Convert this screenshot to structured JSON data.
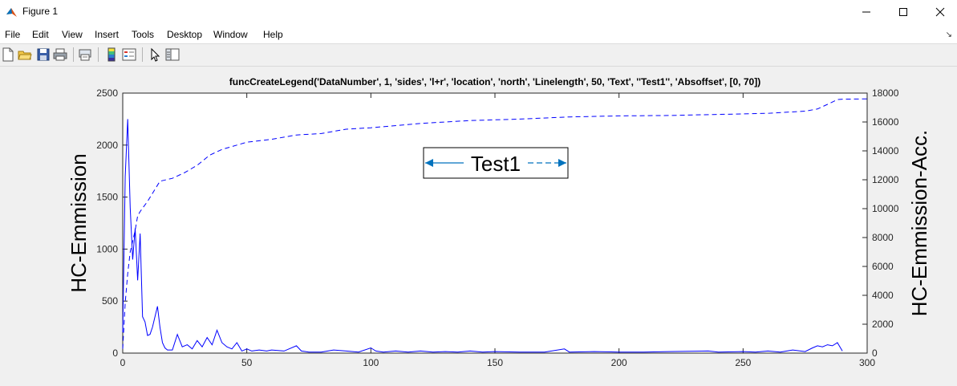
{
  "window": {
    "title": "Figure 1"
  },
  "menu": [
    "File",
    "Edit",
    "View",
    "Insert",
    "Tools",
    "Desktop",
    "Window",
    "Help"
  ],
  "toolbar": [
    "new-figure-icon",
    "open-file-icon",
    "save-icon",
    "print-icon",
    "print-preview-icon",
    "colorbar-icon",
    "legend-icon",
    "pointer-icon",
    "plot-browser-icon"
  ],
  "colors": {
    "series": "#0000ff",
    "legend_arrow": "#0072bd",
    "axes": "#262626"
  },
  "chart_data": {
    "type": "line",
    "title": "funcCreateLegend('DataNumber', 1, 'sides', 'l+r', 'location', 'north', 'Linelength', 50, 'Text', ''Test1'', 'Absoffset', [0, 70])",
    "xlabel": "",
    "ylabel": "HC-Emmission",
    "ylabel_right": "HC-Emmission-Acc.",
    "xlim": [
      0,
      300
    ],
    "ylim": [
      0,
      2500
    ],
    "ylim_right": [
      0,
      18000
    ],
    "xticks": [
      "0",
      "50",
      "100",
      "150",
      "200",
      "250",
      "300"
    ],
    "yticks": [
      "0",
      "500",
      "1000",
      "1500",
      "2000",
      "2500"
    ],
    "yticks_right": [
      "0",
      "2000",
      "4000",
      "6000",
      "8000",
      "10000",
      "12000",
      "14000",
      "16000",
      "18000"
    ],
    "grid": false,
    "legend": {
      "entries": [
        "Test1"
      ],
      "location": "north",
      "sides": "l+r"
    },
    "series": [
      {
        "axis": "left",
        "style": "solid",
        "x": [
          0,
          1,
          2,
          3,
          4,
          5,
          6,
          7,
          8,
          9,
          10,
          11,
          12,
          13,
          14,
          15,
          16,
          17,
          18,
          20,
          22,
          24,
          26,
          28,
          30,
          32,
          34,
          36,
          38,
          40,
          42,
          44,
          46,
          48,
          50,
          52,
          55,
          58,
          60,
          65,
          70,
          72,
          75,
          80,
          85,
          90,
          95,
          100,
          102,
          105,
          110,
          115,
          120,
          125,
          130,
          135,
          140,
          145,
          150,
          160,
          170,
          178,
          180,
          190,
          200,
          210,
          220,
          236,
          240,
          250,
          255,
          260,
          265,
          270,
          275,
          278,
          280,
          282,
          284,
          286,
          288,
          290
        ],
        "y": [
          200,
          1700,
          2250,
          1400,
          900,
          1200,
          700,
          1150,
          350,
          300,
          170,
          180,
          250,
          350,
          450,
          250,
          100,
          50,
          30,
          30,
          180,
          60,
          80,
          40,
          120,
          60,
          150,
          80,
          220,
          100,
          60,
          40,
          100,
          20,
          40,
          20,
          30,
          20,
          30,
          20,
          70,
          20,
          10,
          10,
          30,
          20,
          10,
          50,
          20,
          10,
          20,
          10,
          20,
          10,
          15,
          10,
          20,
          10,
          15,
          10,
          10,
          40,
          10,
          15,
          10,
          10,
          15,
          20,
          10,
          15,
          10,
          20,
          10,
          30,
          15,
          50,
          70,
          60,
          80,
          70,
          100,
          20
        ]
      },
      {
        "axis": "right",
        "style": "dashed",
        "x": [
          0,
          1,
          2,
          3,
          5,
          6,
          7,
          10,
          15,
          20,
          25,
          30,
          35,
          40,
          50,
          60,
          70,
          80,
          90,
          100,
          120,
          140,
          160,
          180,
          200,
          220,
          240,
          260,
          275,
          280,
          285,
          288,
          290,
          300
        ],
        "y": [
          300,
          3500,
          5500,
          7000,
          8500,
          9500,
          9800,
          10500,
          11900,
          12100,
          12500,
          13000,
          13700,
          14100,
          14600,
          14800,
          15100,
          15200,
          15500,
          15600,
          15900,
          16100,
          16200,
          16350,
          16420,
          16450,
          16520,
          16600,
          16750,
          16900,
          17300,
          17550,
          17580,
          17600
        ]
      }
    ]
  }
}
